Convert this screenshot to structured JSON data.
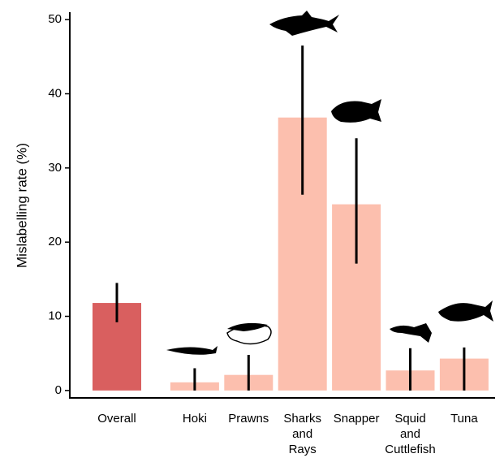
{
  "chart_data": {
    "type": "bar",
    "ylabel": "Mislabelling rate (%)",
    "categories": [
      "Overall",
      "Hoki",
      "Prawns",
      "Sharks and Rays",
      "Snapper",
      "Squid and Cuttlefish",
      "Tuna"
    ],
    "values": [
      11.8,
      1.1,
      2.1,
      36.8,
      25.1,
      2.7,
      4.3
    ],
    "ci_low": [
      9.2,
      0,
      0,
      26.4,
      17.1,
      0,
      0
    ],
    "ci_high": [
      14.5,
      3.0,
      4.8,
      46.5,
      34.0,
      5.7,
      5.8
    ],
    "colors": [
      "#d95f5f",
      "#fcbfae",
      "#fcbfae",
      "#fcbfae",
      "#fcbfae",
      "#fcbfae",
      "#fcbfae"
    ],
    "ylim": [
      -1,
      51
    ],
    "yticks": [
      0,
      10,
      20,
      30,
      40,
      50
    ]
  }
}
